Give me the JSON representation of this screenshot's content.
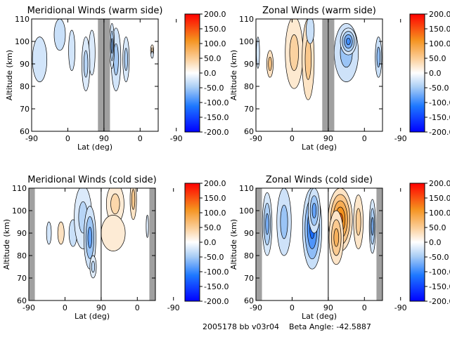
{
  "footer": {
    "date_code": "2005178 bb v03r04",
    "beta": "Beta Angle: -42.5887"
  },
  "colors": {
    "no_data": "#a0a0a0",
    "contour_line": "#000000"
  },
  "chart_data": [
    {
      "type": "heatmap",
      "title": "Meridional Winds (warm side)",
      "xlabel": "Lat (deg)",
      "ylabel": "Altitude (km)",
      "xticks": [
        "-90",
        "0",
        "90",
        "0",
        "-90"
      ],
      "yticks": [
        "60",
        "70",
        "80",
        "90",
        "100",
        "110"
      ],
      "ylim": [
        60,
        110
      ],
      "colorbar": {
        "range": [
          -200,
          200
        ],
        "ticks": [
          "200.0",
          "150.0",
          "100.0",
          "50.0",
          "0.0",
          "-50.0",
          "-100.0",
          "-150.0",
          "-200.0"
        ]
      },
      "no_data_bands": [
        [
          75,
          105
        ]
      ],
      "blobs": [
        {
          "x": -70,
          "y": 92,
          "rx": 18,
          "ry": 10,
          "v": -25
        },
        {
          "x": -20,
          "y": 103,
          "rx": 14,
          "ry": 7,
          "v": -30
        },
        {
          "x": 10,
          "y": 96,
          "rx": 8,
          "ry": 9,
          "v": -25
        },
        {
          "x": 60,
          "y": 95,
          "rx": 8,
          "ry": 10,
          "v": -20
        },
        {
          "x": 45,
          "y": 90,
          "rx": 10,
          "ry": 12,
          "v": -40
        },
        {
          "x": 120,
          "y": 92,
          "rx": 12,
          "ry": 14,
          "v": -50
        },
        {
          "x": 110,
          "y": 98,
          "rx": 6,
          "ry": 10,
          "v": -70
        },
        {
          "x": 145,
          "y": 92,
          "rx": 8,
          "ry": 10,
          "v": -45
        },
        {
          "x": 210,
          "y": 96,
          "rx": 4,
          "ry": 2.5,
          "v": 40
        },
        {
          "x": 210,
          "y": 94,
          "rx": 3,
          "ry": 1.5,
          "v": -20
        }
      ]
    },
    {
      "type": "heatmap",
      "title": "Zonal Winds (warm side)",
      "xlabel": "Lat (deg)",
      "ylabel": "Altitude (km)",
      "xticks": [
        "-90",
        "0",
        "90",
        "0",
        "-90"
      ],
      "yticks": [
        "60",
        "70",
        "80",
        "90",
        "100",
        "110"
      ],
      "ylim": [
        60,
        110
      ],
      "colorbar": {
        "range": [
          -200,
          200
        ],
        "ticks": [
          "200.0",
          "150.0",
          "100.0",
          "50.0",
          "0.0",
          "-50.0",
          "-100.0",
          "-150.0",
          "-200.0"
        ]
      },
      "no_data_bands": [
        [
          75,
          105
        ]
      ],
      "blobs": [
        {
          "x": -85,
          "y": 95,
          "rx": 4,
          "ry": 7,
          "v": -25
        },
        {
          "x": -55,
          "y": 90,
          "rx": 8,
          "ry": 6,
          "v": 60
        },
        {
          "x": 5,
          "y": 95,
          "rx": 22,
          "ry": 16,
          "v": 45
        },
        {
          "x": 40,
          "y": 92,
          "rx": 15,
          "ry": 18,
          "v": 55
        },
        {
          "x": 45,
          "y": 105,
          "rx": 10,
          "ry": 6,
          "v": -30
        },
        {
          "x": 135,
          "y": 95,
          "rx": 30,
          "ry": 13,
          "v": -55
        },
        {
          "x": 140,
          "y": 100,
          "rx": 20,
          "ry": 6,
          "v": -95
        },
        {
          "x": 215,
          "y": 93,
          "rx": 8,
          "ry": 9,
          "v": -60
        }
      ]
    },
    {
      "type": "heatmap",
      "title": "Meridional Winds (cold side)",
      "xlabel": "Lat (deg)",
      "ylabel": "Altitude (km)",
      "xticks": [
        "-90",
        "0",
        "90",
        "0",
        "-90"
      ],
      "yticks": [
        "60",
        "70",
        "80",
        "90",
        "100",
        "110"
      ],
      "ylim": [
        60,
        110
      ],
      "colorbar": {
        "range": [
          -200,
          200
        ],
        "ticks": [
          "200.0",
          "150.0",
          "100.0",
          "50.0",
          "0.0",
          "-50.0",
          "-100.0",
          "-150.0",
          "-200.0"
        ]
      },
      "no_data_bands": [
        [
          -90,
          -75
        ],
        [
          210,
          225
        ]
      ],
      "blobs": [
        {
          "x": -40,
          "y": 90,
          "rx": 6,
          "ry": 5,
          "v": -25
        },
        {
          "x": -10,
          "y": 90,
          "rx": 8,
          "ry": 5,
          "v": 30
        },
        {
          "x": 20,
          "y": 90,
          "rx": 10,
          "ry": 6,
          "v": -30
        },
        {
          "x": 45,
          "y": 97,
          "rx": 22,
          "ry": 14,
          "v": -40
        },
        {
          "x": 62,
          "y": 88,
          "rx": 15,
          "ry": 14,
          "v": -80
        },
        {
          "x": 70,
          "y": 75,
          "rx": 8,
          "ry": 5,
          "v": -35
        },
        {
          "x": 125,
          "y": 103,
          "rx": 22,
          "ry": 9,
          "v": 40
        },
        {
          "x": 120,
          "y": 90,
          "rx": 30,
          "ry": 8,
          "v": 20
        },
        {
          "x": 170,
          "y": 105,
          "rx": 8,
          "ry": 9,
          "v": 55
        },
        {
          "x": 205,
          "y": 93,
          "rx": 3,
          "ry": 5,
          "v": -20
        }
      ]
    },
    {
      "type": "heatmap",
      "title": "Zonal Winds (cold side)",
      "xlabel": "Lat (deg)",
      "ylabel": "Altitude (km)",
      "xticks": [
        "-90",
        "0",
        "90",
        "0",
        "-90"
      ],
      "yticks": [
        "60",
        "70",
        "80",
        "90",
        "100",
        "110"
      ],
      "ylim": [
        60,
        110
      ],
      "colorbar": {
        "range": [
          -200,
          200
        ],
        "ticks": [
          "200.0",
          "150.0",
          "100.0",
          "50.0",
          "0.0",
          "-50.0",
          "-100.0",
          "-150.0",
          "-200.0"
        ]
      },
      "no_data_bands": [
        [
          -90,
          -75
        ],
        [
          210,
          225
        ]
      ],
      "blobs": [
        {
          "x": -62,
          "y": 94,
          "rx": 12,
          "ry": 14,
          "v": -70
        },
        {
          "x": -20,
          "y": 95,
          "rx": 18,
          "ry": 15,
          "v": -55
        },
        {
          "x": 50,
          "y": 92,
          "rx": 24,
          "ry": 18,
          "v": -120
        },
        {
          "x": 55,
          "y": 100,
          "rx": 15,
          "ry": 10,
          "v": -80
        },
        {
          "x": 120,
          "y": 96,
          "rx": 30,
          "ry": 14,
          "v": 140
        },
        {
          "x": 110,
          "y": 88,
          "rx": 18,
          "ry": 12,
          "v": 80
        },
        {
          "x": 165,
          "y": 95,
          "rx": 12,
          "ry": 12,
          "v": 50
        },
        {
          "x": 200,
          "y": 93,
          "rx": 8,
          "ry": 12,
          "v": -70
        }
      ]
    }
  ]
}
